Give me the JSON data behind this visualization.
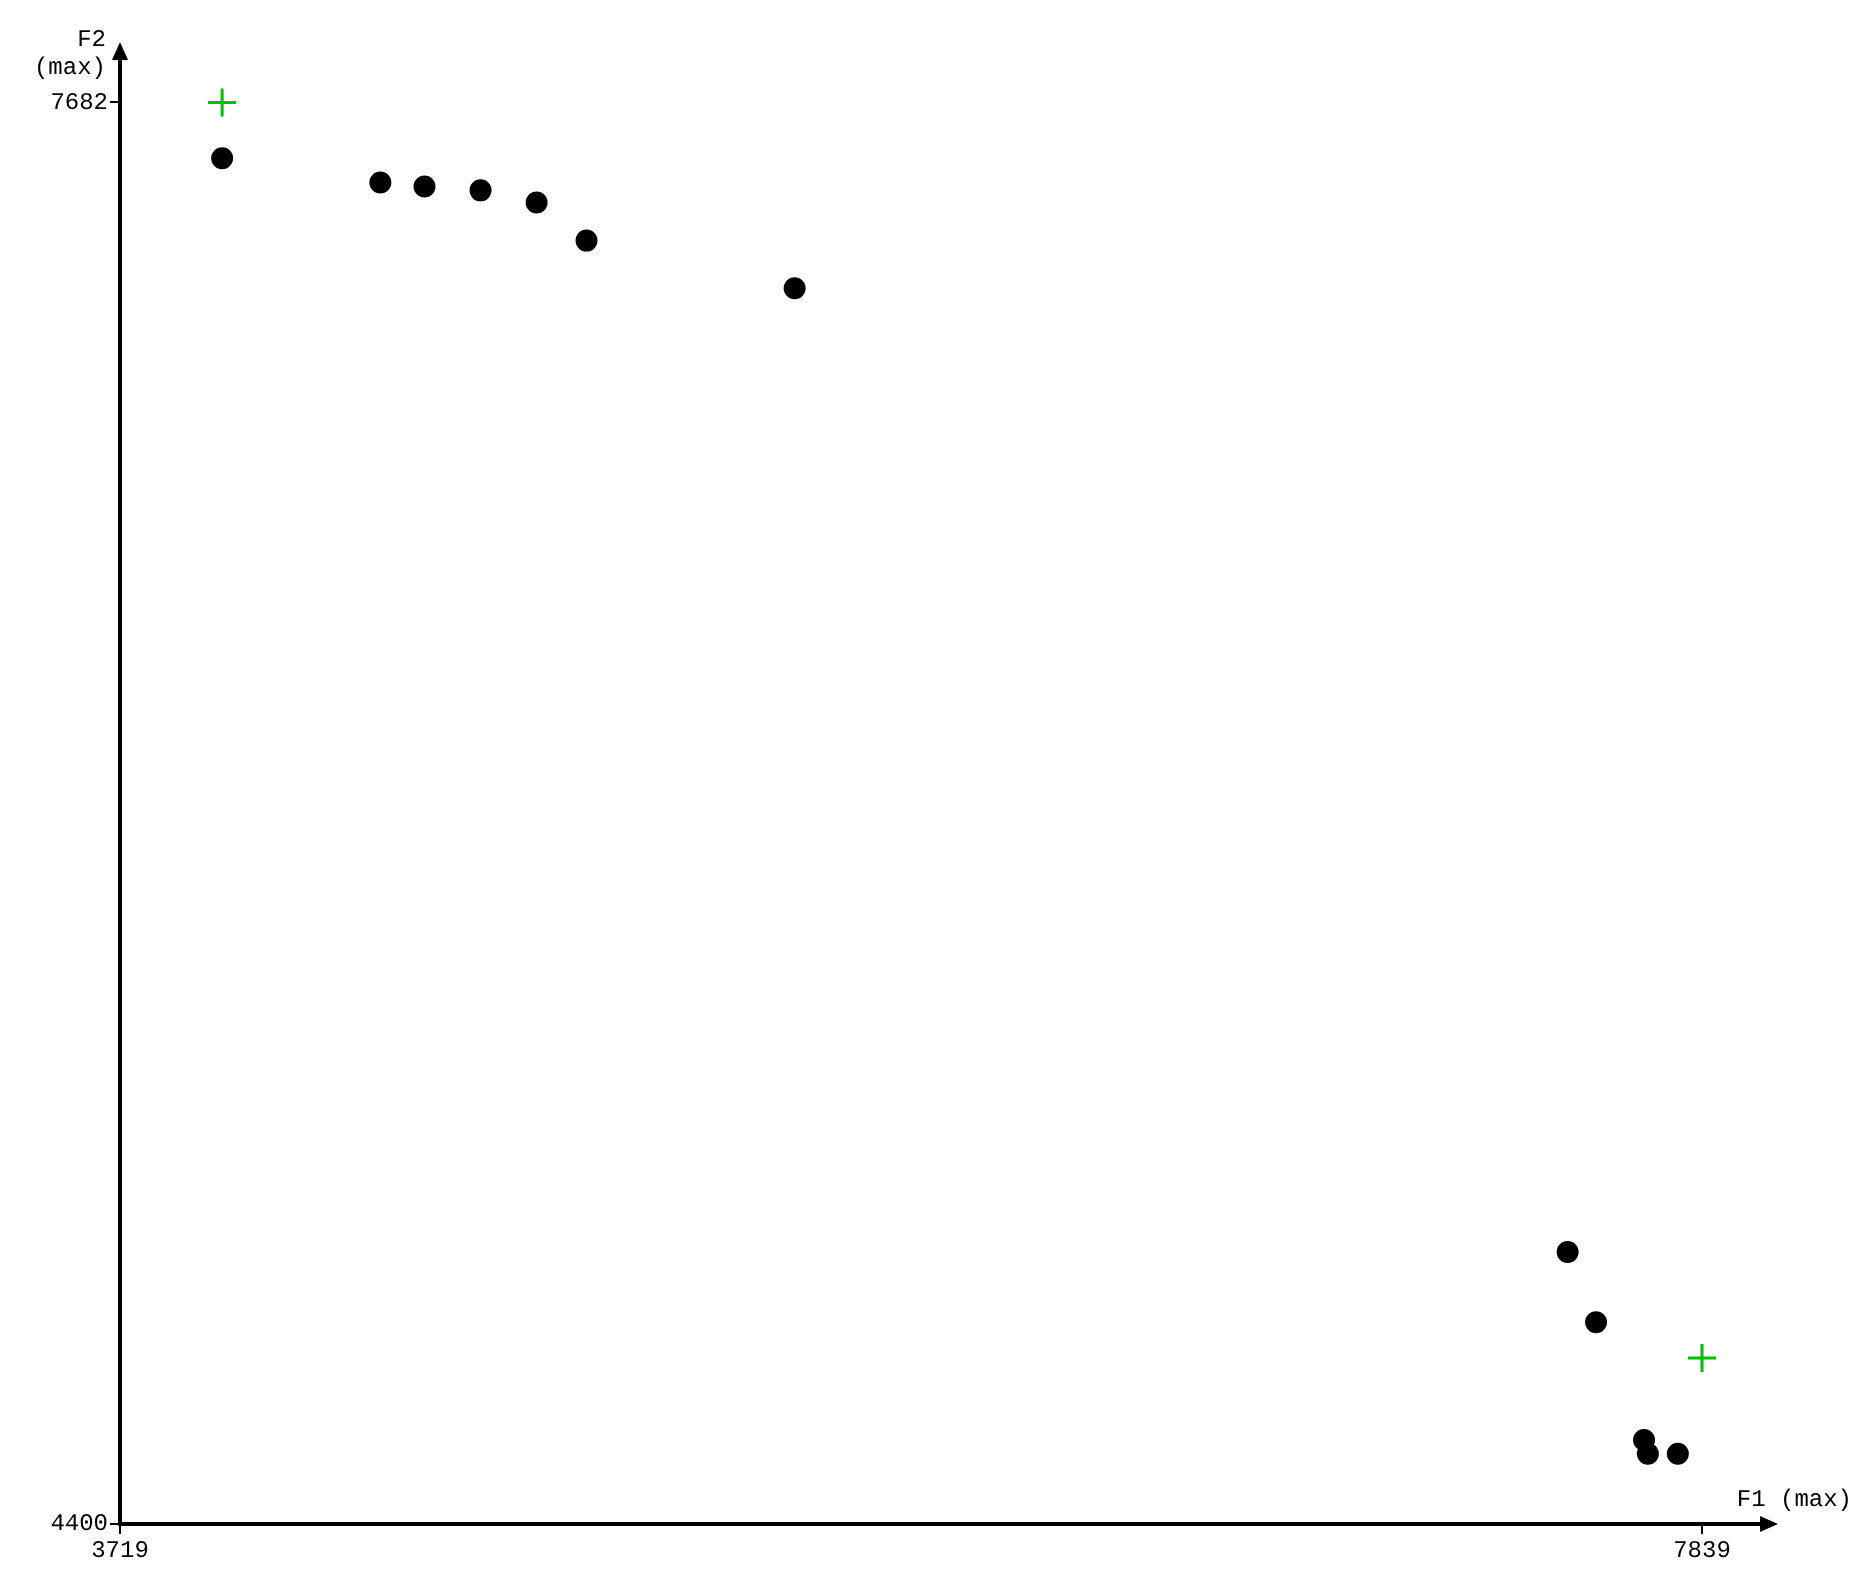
{
  "chart_data": {
    "type": "scatter",
    "xlabel": "F1 (max)",
    "ylabel": "F2 (max)",
    "xlim": [
      3719,
      7990
    ],
    "ylim": [
      4400,
      7780
    ],
    "xticks": [
      3719,
      7839
    ],
    "yticks": [
      4400,
      7682
    ],
    "grid": false,
    "legend": false,
    "series": [
      {
        "color": "#000000",
        "marker": "circle",
        "x": [
          3985,
          4397,
          4512,
          4658,
          4804,
          4934,
          5476,
          7489,
          7563,
          7688,
          7698,
          7776
        ],
        "values": [
          7553,
          7497,
          7488,
          7479,
          7451,
          7363,
          7253,
          5028,
          4866,
          4594,
          4562,
          4562
        ]
      },
      {
        "color": "#00c000",
        "marker": "cross",
        "x": [
          3985,
          7839
        ],
        "values": [
          7682,
          4783
        ]
      }
    ]
  }
}
